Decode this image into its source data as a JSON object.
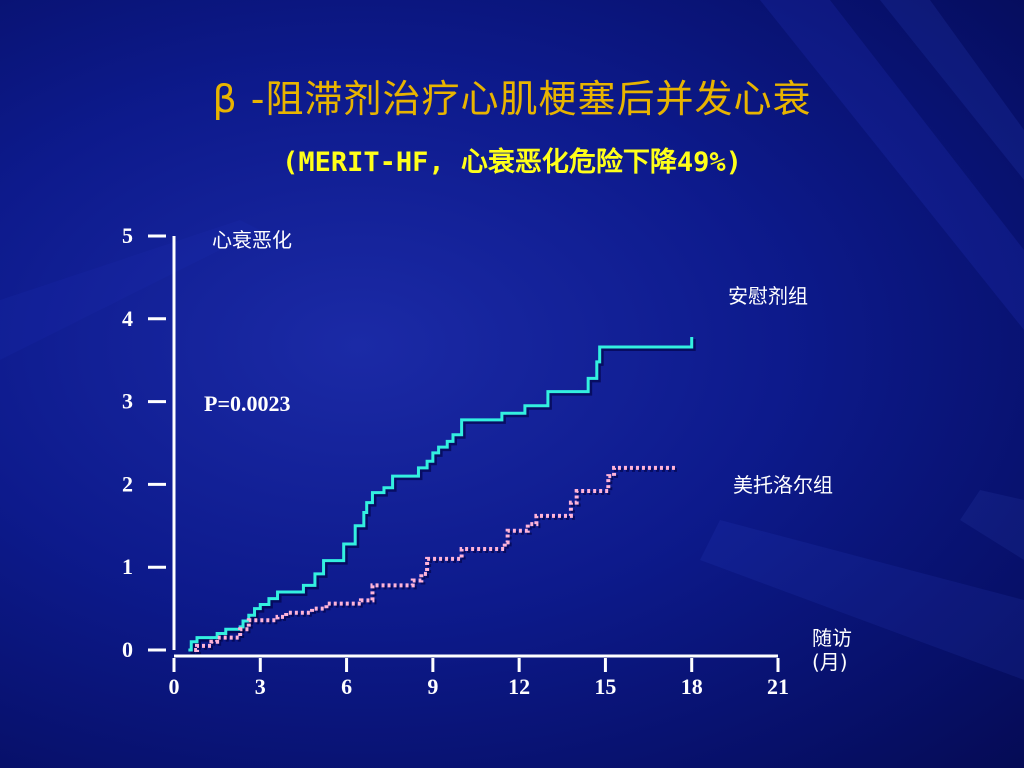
{
  "title": "β -阻滞剂治疗心肌梗塞后并发心衰",
  "subtitle": "(MERIT-HF, 心衰恶化危险下降49%)",
  "colors": {
    "background": "#0d1a8c",
    "title": "#e8b400",
    "subtitle": "#ffff1a",
    "placebo": "#33f0e0",
    "metoprolol": "#ffb4d8",
    "axis": "#ffffff"
  },
  "chart_data": {
    "type": "line",
    "title": "β -阻滞剂治疗心肌梗塞后并发心衰",
    "subtitle": "(MERIT-HF, 心衰恶化危险下降49%)",
    "ylabel": "心衰恶化",
    "xlabel": "随访(月)",
    "xlim": [
      0,
      21
    ],
    "ylim": [
      0,
      5
    ],
    "xticks": [
      0,
      3,
      6,
      9,
      12,
      15,
      18,
      21
    ],
    "yticks": [
      0,
      1,
      2,
      3,
      4,
      5
    ],
    "annotation": "P=0.0023",
    "grid": false,
    "step": true,
    "series": [
      {
        "name": "安慰剂组",
        "style": "solid",
        "color": "#33f0e0",
        "points": [
          [
            0.5,
            0
          ],
          [
            0.6,
            0.1
          ],
          [
            0.8,
            0.15
          ],
          [
            1.5,
            0.2
          ],
          [
            1.8,
            0.25
          ],
          [
            2.3,
            0.28
          ],
          [
            2.4,
            0.35
          ],
          [
            2.6,
            0.42
          ],
          [
            2.8,
            0.5
          ],
          [
            3.0,
            0.55
          ],
          [
            3.3,
            0.62
          ],
          [
            3.6,
            0.7
          ],
          [
            4.5,
            0.78
          ],
          [
            4.9,
            0.92
          ],
          [
            5.2,
            1.08
          ],
          [
            5.9,
            1.28
          ],
          [
            6.3,
            1.5
          ],
          [
            6.6,
            1.66
          ],
          [
            6.7,
            1.78
          ],
          [
            6.9,
            1.9
          ],
          [
            7.3,
            1.96
          ],
          [
            7.6,
            2.1
          ],
          [
            8.5,
            2.2
          ],
          [
            8.8,
            2.28
          ],
          [
            9.0,
            2.38
          ],
          [
            9.2,
            2.45
          ],
          [
            9.5,
            2.52
          ],
          [
            9.7,
            2.6
          ],
          [
            10.0,
            2.78
          ],
          [
            11.4,
            2.86
          ],
          [
            12.2,
            2.95
          ],
          [
            13.0,
            3.12
          ],
          [
            14.4,
            3.28
          ],
          [
            14.7,
            3.48
          ],
          [
            14.8,
            3.66
          ],
          [
            18.0,
            3.78
          ]
        ]
      },
      {
        "name": "美托洛尔组",
        "style": "dotted",
        "color": "#ffb4d8",
        "points": [
          [
            0.7,
            0
          ],
          [
            0.8,
            0.05
          ],
          [
            1.3,
            0.1
          ],
          [
            1.5,
            0.15
          ],
          [
            2.3,
            0.25
          ],
          [
            2.6,
            0.36
          ],
          [
            3.6,
            0.4
          ],
          [
            3.9,
            0.45
          ],
          [
            4.8,
            0.5
          ],
          [
            5.3,
            0.56
          ],
          [
            6.5,
            0.6
          ],
          [
            6.9,
            0.78
          ],
          [
            8.3,
            0.84
          ],
          [
            8.6,
            0.92
          ],
          [
            8.8,
            1.1
          ],
          [
            10.0,
            1.22
          ],
          [
            11.5,
            1.3
          ],
          [
            11.6,
            1.44
          ],
          [
            12.3,
            1.52
          ],
          [
            12.6,
            1.62
          ],
          [
            13.8,
            1.78
          ],
          [
            14.0,
            1.92
          ],
          [
            15.1,
            2.1
          ],
          [
            15.3,
            2.2
          ],
          [
            17.5,
            2.2
          ]
        ]
      }
    ]
  }
}
